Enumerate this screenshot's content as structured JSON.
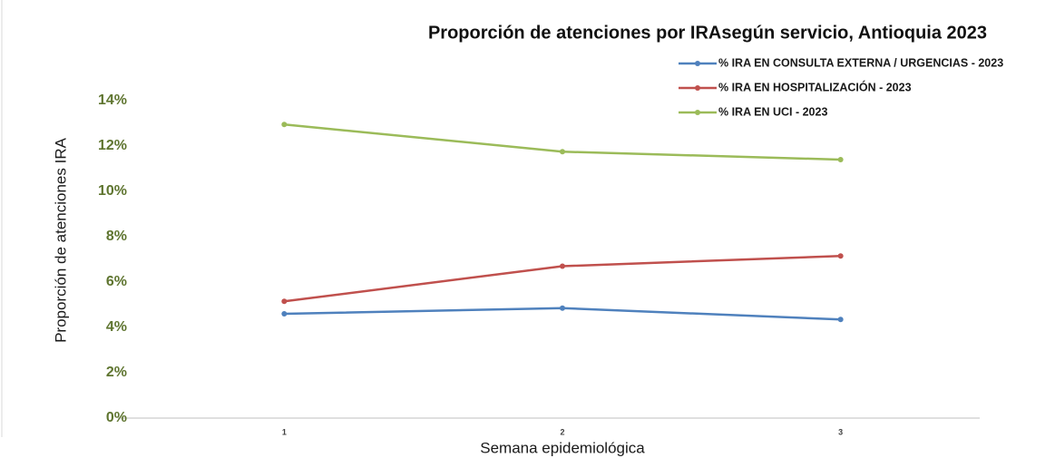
{
  "chart_data": {
    "type": "line",
    "title": "Proporción de atenciones por IRAsegún servicio, Antioquia 2023",
    "x_label": "Semana epidemiológica",
    "y_label": "Proporción de atenciones IRA",
    "categories": [
      "1",
      "2",
      "3"
    ],
    "series": [
      {
        "name": "% IRA EN CONSULTA EXTERNA / URGENCIAS - 2023",
        "color": "#4f81bd",
        "values": [
          4.6,
          4.85,
          4.35
        ]
      },
      {
        "name": "% IRA EN HOSPITALIZACIÓN - 2023",
        "color": "#c0504d",
        "values": [
          5.15,
          6.7,
          7.15
        ]
      },
      {
        "name": "% IRA EN UCI - 2023",
        "color": "#9bbb59",
        "values": [
          12.95,
          11.75,
          11.4
        ]
      }
    ],
    "ylim": [
      0,
      14
    ],
    "yticks": [
      {
        "value": 0,
        "label": "0%"
      },
      {
        "value": 2,
        "label": "2%"
      },
      {
        "value": 4,
        "label": "4%"
      },
      {
        "value": 6,
        "label": "6%"
      },
      {
        "value": 8,
        "label": "8%"
      },
      {
        "value": 10,
        "label": "10%"
      },
      {
        "value": 12,
        "label": "12%"
      },
      {
        "value": 14,
        "label": "14%"
      }
    ],
    "grid": false,
    "legend": "top-right"
  }
}
